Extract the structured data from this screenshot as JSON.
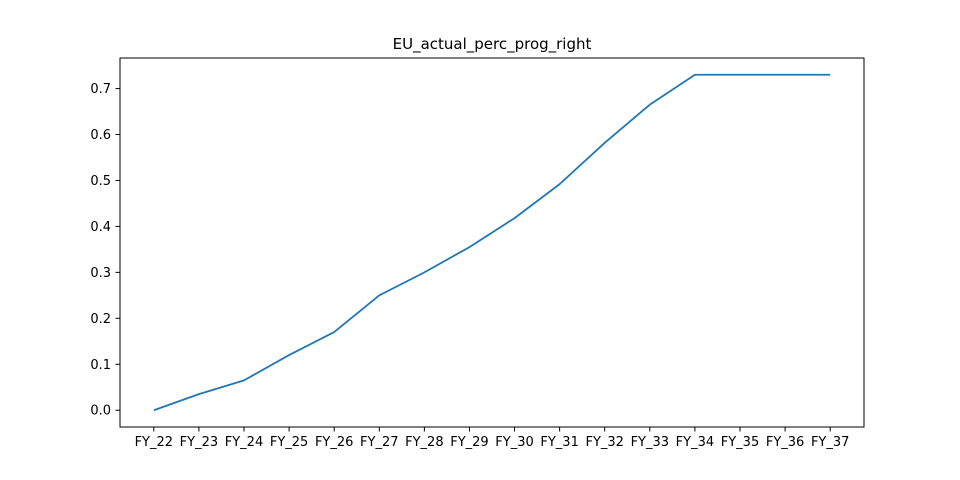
{
  "chart_data": {
    "type": "line",
    "title": "EU_actual_perc_prog_right",
    "xlabel": "",
    "ylabel": "",
    "categories": [
      "FY_22",
      "FY_23",
      "FY_24",
      "FY_25",
      "FY_26",
      "FY_27",
      "FY_28",
      "FY_29",
      "FY_30",
      "FY_31",
      "FY_32",
      "FY_33",
      "FY_34",
      "FY_35",
      "FY_36",
      "FY_37"
    ],
    "series": [
      {
        "values": [
          0.0,
          0.035,
          0.065,
          0.12,
          0.17,
          0.25,
          0.3,
          0.355,
          0.418,
          0.492,
          0.582,
          0.665,
          0.73,
          0.73,
          0.73,
          0.73
        ]
      }
    ],
    "ylim": [
      -0.0365,
      0.7665
    ],
    "yticks": [
      0.0,
      0.1,
      0.2,
      0.3,
      0.4,
      0.5,
      0.6,
      0.7
    ],
    "ytick_labels": [
      "0.0",
      "0.1",
      "0.2",
      "0.3",
      "0.4",
      "0.5",
      "0.6",
      "0.7"
    ],
    "grid": false,
    "legend": "none",
    "line_color": "#1f77b4"
  }
}
